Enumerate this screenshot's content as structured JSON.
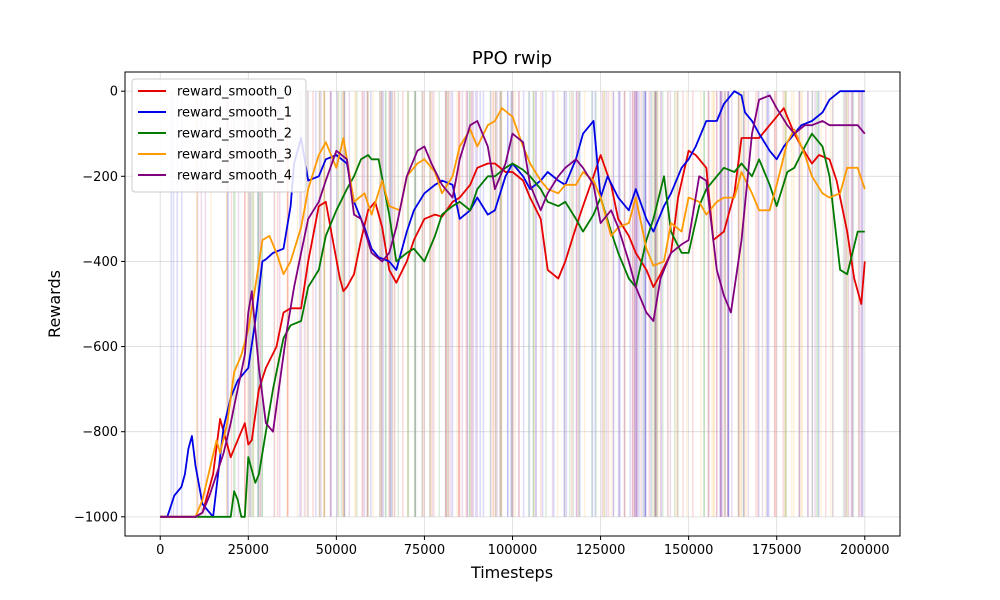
{
  "chart_data": {
    "type": "line",
    "title": "PPO rwip",
    "xlabel": "Timesteps",
    "ylabel": "Rewards",
    "xlim": [
      -10000,
      210000
    ],
    "ylim": [
      -1045,
      45
    ],
    "xticks": [
      0,
      25000,
      50000,
      75000,
      100000,
      125000,
      150000,
      175000,
      200000
    ],
    "yticks": [
      -1000,
      -800,
      -600,
      -400,
      -200,
      0
    ],
    "grid": true,
    "legend_position": "top-left",
    "series": [
      {
        "name": "reward_smooth_0",
        "color": "#e60000",
        "x": [
          0,
          5000,
          10000,
          12000,
          15000,
          17000,
          20000,
          22000,
          24000,
          25000,
          26000,
          28000,
          30000,
          33000,
          35000,
          37000,
          40000,
          42000,
          45000,
          47000,
          49000,
          51000,
          52000,
          53000,
          55000,
          57000,
          59000,
          61000,
          63000,
          65000,
          67000,
          70000,
          72000,
          75000,
          78000,
          80000,
          83000,
          85000,
          88000,
          90000,
          93000,
          95000,
          98000,
          100000,
          103000,
          105000,
          108000,
          110000,
          113000,
          115000,
          118000,
          120000,
          123000,
          125000,
          128000,
          130000,
          133000,
          135000,
          138000,
          140000,
          142000,
          145000,
          147000,
          150000,
          152000,
          155000,
          157000,
          160000,
          163000,
          165000,
          168000,
          170000,
          172000,
          175000,
          177000,
          180000,
          182000,
          185000,
          187000,
          190000,
          192000,
          195000,
          197000,
          199000,
          200000
        ],
        "y": [
          -1000,
          -1000,
          -1000,
          -990,
          -900,
          -770,
          -860,
          -820,
          -780,
          -830,
          -820,
          -700,
          -650,
          -600,
          -520,
          -510,
          -510,
          -400,
          -270,
          -260,
          -350,
          -440,
          -470,
          -460,
          -430,
          -350,
          -280,
          -260,
          -320,
          -420,
          -450,
          -400,
          -350,
          -300,
          -290,
          -295,
          -260,
          -250,
          -220,
          -180,
          -170,
          -170,
          -190,
          -190,
          -210,
          -250,
          -300,
          -420,
          -440,
          -400,
          -320,
          -270,
          -200,
          -150,
          -220,
          -300,
          -340,
          -380,
          -420,
          -460,
          -430,
          -380,
          -250,
          -140,
          -150,
          -180,
          -350,
          -330,
          -240,
          -110,
          -110,
          -110,
          -90,
          -60,
          -40,
          -100,
          -130,
          -170,
          -150,
          -160,
          -210,
          -330,
          -440,
          -500,
          -400
        ]
      },
      {
        "name": "reward_smooth_1",
        "color": "#0000e6",
        "x": [
          0,
          2000,
          4000,
          6000,
          7000,
          8000,
          9000,
          10000,
          12000,
          15000,
          18000,
          20000,
          22000,
          25000,
          27000,
          29000,
          30000,
          32000,
          35000,
          37000,
          38000,
          40000,
          42000,
          45000,
          47000,
          50000,
          53000,
          55000,
          58000,
          60000,
          62000,
          65000,
          67000,
          70000,
          72000,
          75000,
          78000,
          80000,
          83000,
          85000,
          88000,
          90000,
          93000,
          95000,
          98000,
          100000,
          103000,
          105000,
          108000,
          110000,
          113000,
          115000,
          118000,
          120000,
          122000,
          123000,
          125000,
          127000,
          130000,
          133000,
          135000,
          138000,
          140000,
          143000,
          145000,
          148000,
          150000,
          152000,
          155000,
          158000,
          160000,
          163000,
          165000,
          166000,
          168000,
          170000,
          173000,
          175000,
          177000,
          179000,
          180000,
          182000,
          185000,
          188000,
          190000,
          193000,
          195000,
          198000,
          200000
        ],
        "y": [
          -1000,
          -1000,
          -950,
          -930,
          -900,
          -840,
          -810,
          -880,
          -970,
          -1000,
          -790,
          -720,
          -680,
          -650,
          -540,
          -400,
          -395,
          -380,
          -370,
          -270,
          -170,
          -110,
          -210,
          -200,
          -160,
          -150,
          -170,
          -260,
          -320,
          -370,
          -390,
          -400,
          -420,
          -330,
          -280,
          -240,
          -220,
          -210,
          -220,
          -300,
          -280,
          -250,
          -290,
          -280,
          -200,
          -170,
          -200,
          -230,
          -210,
          -190,
          -210,
          -220,
          -160,
          -100,
          -80,
          -70,
          -250,
          -200,
          -250,
          -280,
          -230,
          -300,
          -330,
          -270,
          -240,
          -180,
          -160,
          -130,
          -70,
          -70,
          -30,
          0,
          -10,
          -50,
          -70,
          -100,
          -140,
          -160,
          -130,
          -110,
          -100,
          -80,
          -70,
          -50,
          -20,
          0,
          0,
          0,
          0
        ]
      },
      {
        "name": "reward_smooth_2",
        "color": "#007a00",
        "x": [
          0,
          5000,
          10000,
          15000,
          18000,
          20000,
          21000,
          22000,
          23000,
          24000,
          25000,
          27000,
          28000,
          30000,
          32000,
          35000,
          37000,
          40000,
          42000,
          45000,
          47000,
          50000,
          53000,
          55000,
          57000,
          59000,
          60000,
          62000,
          65000,
          67000,
          70000,
          72000,
          75000,
          78000,
          80000,
          83000,
          85000,
          88000,
          90000,
          93000,
          95000,
          98000,
          100000,
          103000,
          105000,
          108000,
          110000,
          113000,
          115000,
          118000,
          120000,
          123000,
          125000,
          128000,
          130000,
          133000,
          135000,
          138000,
          140000,
          143000,
          145000,
          148000,
          150000,
          153000,
          155000,
          158000,
          160000,
          163000,
          165000,
          168000,
          170000,
          173000,
          175000,
          178000,
          180000,
          183000,
          185000,
          188000,
          190000,
          193000,
          195000,
          198000,
          200000
        ],
        "y": [
          -1000,
          -1000,
          -1000,
          -1000,
          -1000,
          -1000,
          -940,
          -960,
          -1000,
          -1000,
          -860,
          -920,
          -900,
          -800,
          -700,
          -580,
          -550,
          -540,
          -460,
          -420,
          -340,
          -280,
          -230,
          -200,
          -160,
          -150,
          -160,
          -160,
          -290,
          -400,
          -380,
          -370,
          -400,
          -340,
          -290,
          -270,
          -260,
          -280,
          -230,
          -200,
          -200,
          -180,
          -170,
          -185,
          -200,
          -230,
          -260,
          -270,
          -260,
          -300,
          -330,
          -290,
          -250,
          -330,
          -380,
          -440,
          -460,
          -350,
          -300,
          -200,
          -330,
          -380,
          -380,
          -270,
          -230,
          -200,
          -180,
          -190,
          -170,
          -200,
          -160,
          -220,
          -270,
          -190,
          -180,
          -130,
          -100,
          -130,
          -200,
          -420,
          -430,
          -330,
          -330
        ]
      },
      {
        "name": "reward_smooth_3",
        "color": "#ff9a00",
        "x": [
          0,
          5000,
          10000,
          12000,
          14000,
          16000,
          17000,
          19000,
          21000,
          23000,
          25000,
          27000,
          29000,
          31000,
          33000,
          35000,
          37000,
          40000,
          42000,
          45000,
          47000,
          50000,
          52000,
          55000,
          58000,
          60000,
          63000,
          65000,
          68000,
          70000,
          73000,
          75000,
          78000,
          80000,
          83000,
          85000,
          88000,
          90000,
          93000,
          95000,
          97000,
          100000,
          103000,
          105000,
          108000,
          110000,
          113000,
          115000,
          118000,
          120000,
          123000,
          125000,
          128000,
          130000,
          133000,
          135000,
          138000,
          140000,
          143000,
          145000,
          148000,
          150000,
          153000,
          155000,
          158000,
          160000,
          163000,
          165000,
          168000,
          170000,
          173000,
          175000,
          178000,
          180000,
          183000,
          185000,
          188000,
          190000,
          193000,
          195000,
          198000,
          200000
        ],
        "y": [
          -1000,
          -1000,
          -1000,
          -960,
          -890,
          -820,
          -850,
          -780,
          -660,
          -620,
          -560,
          -460,
          -350,
          -340,
          -380,
          -430,
          -400,
          -320,
          -230,
          -150,
          -120,
          -180,
          -110,
          -260,
          -240,
          -290,
          -210,
          -270,
          -280,
          -200,
          -170,
          -160,
          -190,
          -240,
          -200,
          -130,
          -90,
          -130,
          -80,
          -70,
          -40,
          -60,
          -130,
          -170,
          -210,
          -230,
          -240,
          -220,
          -220,
          -190,
          -210,
          -250,
          -340,
          -320,
          -310,
          -250,
          -370,
          -410,
          -400,
          -310,
          -330,
          -250,
          -260,
          -290,
          -260,
          -250,
          -250,
          -190,
          -240,
          -280,
          -280,
          -220,
          -120,
          -90,
          -150,
          -200,
          -240,
          -250,
          -240,
          -180,
          -180,
          -230
        ]
      },
      {
        "name": "reward_smooth_4",
        "color": "#800080",
        "x": [
          0,
          5000,
          10000,
          12000,
          14000,
          16000,
          18000,
          20000,
          22000,
          24000,
          25000,
          26000,
          27000,
          28000,
          30000,
          32000,
          34000,
          36000,
          38000,
          40000,
          42000,
          45000,
          47000,
          50000,
          53000,
          55000,
          57000,
          60000,
          63000,
          65000,
          67000,
          70000,
          73000,
          75000,
          77000,
          80000,
          83000,
          85000,
          88000,
          90000,
          93000,
          95000,
          98000,
          100000,
          103000,
          105000,
          108000,
          110000,
          113000,
          115000,
          118000,
          120000,
          123000,
          125000,
          128000,
          130000,
          133000,
          135000,
          138000,
          140000,
          142000,
          145000,
          148000,
          150000,
          153000,
          155000,
          158000,
          160000,
          162000,
          165000,
          168000,
          170000,
          173000,
          175000,
          178000,
          180000,
          183000,
          185000,
          188000,
          190000,
          193000,
          195000,
          198000,
          200000
        ],
        "y": [
          -1000,
          -1000,
          -1000,
          -990,
          -950,
          -900,
          -850,
          -780,
          -700,
          -620,
          -520,
          -470,
          -560,
          -650,
          -780,
          -800,
          -680,
          -560,
          -460,
          -380,
          -300,
          -260,
          -210,
          -140,
          -160,
          -290,
          -300,
          -380,
          -400,
          -380,
          -320,
          -200,
          -140,
          -130,
          -170,
          -220,
          -250,
          -160,
          -80,
          -70,
          -130,
          -230,
          -170,
          -100,
          -120,
          -220,
          -280,
          -240,
          -200,
          -180,
          -160,
          -180,
          -220,
          -310,
          -280,
          -320,
          -400,
          -460,
          -520,
          -540,
          -440,
          -380,
          -360,
          -350,
          -200,
          -210,
          -420,
          -480,
          -520,
          -350,
          -100,
          -20,
          -10,
          -40,
          -80,
          -100,
          -80,
          -80,
          -70,
          -80,
          -80,
          -80,
          -80,
          -100
        ]
      }
    ]
  }
}
